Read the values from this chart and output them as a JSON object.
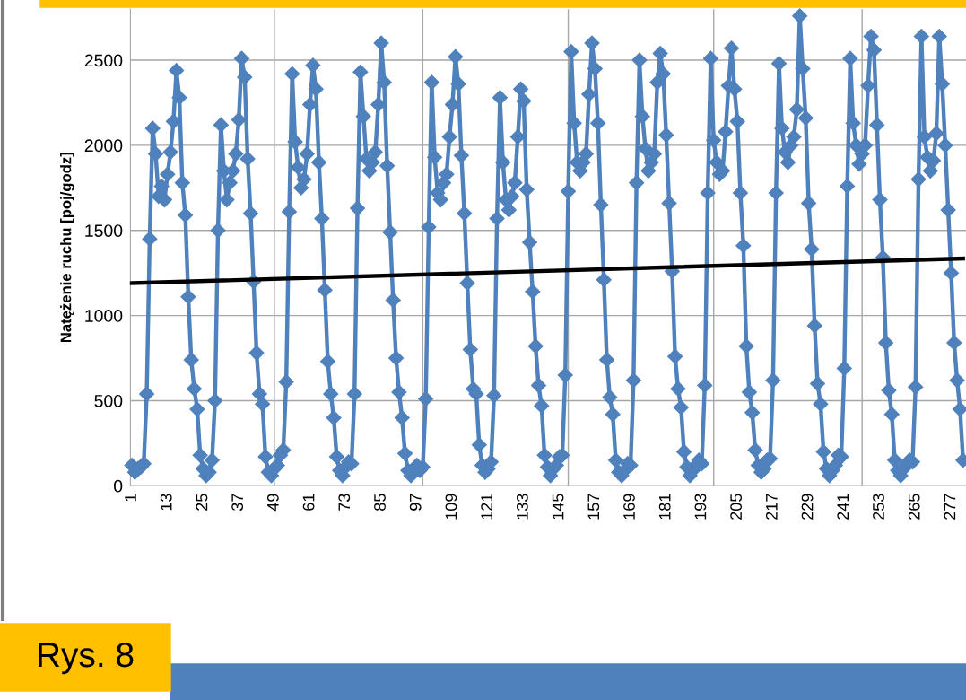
{
  "chart_data": {
    "type": "line",
    "ylabel": "Natężenie ruchu [poj/godz]",
    "annotations": [
      "Rys. 8"
    ],
    "x": [
      1,
      2,
      3,
      4,
      5,
      6,
      7,
      8,
      9,
      10,
      11,
      12,
      13,
      14,
      15,
      16,
      17,
      18,
      19,
      20,
      21,
      22,
      23,
      24,
      25,
      26,
      27,
      28,
      29,
      30,
      31,
      32,
      33,
      34,
      35,
      36,
      37,
      38,
      39,
      40,
      41,
      42,
      43,
      44,
      45,
      46,
      47,
      48,
      49,
      50,
      51,
      52,
      53,
      54,
      55,
      56,
      57,
      58,
      59,
      60,
      61,
      62,
      63,
      64,
      65,
      66,
      67,
      68,
      69,
      70,
      71,
      72,
      73,
      74,
      75,
      76,
      77,
      78,
      79,
      80,
      81,
      82,
      83,
      84,
      85,
      86,
      87,
      88,
      89,
      90,
      91,
      92,
      93,
      94,
      95,
      96,
      97,
      98,
      99,
      100,
      101,
      102,
      103,
      104,
      105,
      106,
      107,
      108,
      109,
      110,
      111,
      112,
      113,
      114,
      115,
      116,
      117,
      118,
      119,
      120,
      121,
      122,
      123,
      124,
      125,
      126,
      127,
      128,
      129,
      130,
      131,
      132,
      133,
      134,
      135,
      136,
      137,
      138,
      139,
      140,
      141,
      142,
      143,
      144,
      145,
      146,
      147,
      148,
      149,
      150,
      151,
      152,
      153,
      154,
      155,
      156,
      157,
      158,
      159,
      160,
      161,
      162,
      163,
      164,
      165,
      166,
      167,
      168,
      169,
      170,
      171,
      172,
      173,
      174,
      175,
      176,
      177,
      178,
      179,
      180,
      181,
      182,
      183,
      184,
      185,
      186,
      187,
      188,
      189,
      190,
      191,
      192,
      193,
      194,
      195,
      196,
      197,
      198,
      199,
      200,
      201,
      202,
      203,
      204,
      205,
      206,
      207,
      208,
      209,
      210,
      211,
      212,
      213,
      214,
      215,
      216,
      217,
      218,
      219,
      220,
      221,
      222,
      223,
      224,
      225,
      226,
      227,
      228,
      229,
      230,
      231,
      232,
      233,
      234,
      235,
      236,
      237,
      238,
      239,
      240,
      241,
      242,
      243,
      244,
      245,
      246,
      247,
      248,
      249,
      250,
      251,
      252,
      253,
      254,
      255,
      256,
      257,
      258,
      259,
      260,
      261,
      262,
      263,
      264,
      265,
      266,
      267,
      268,
      269,
      270,
      271,
      272,
      273,
      274,
      275,
      276,
      277,
      278,
      279,
      280,
      281
    ],
    "series": [
      {
        "color": "#4f81bd",
        "marker": "diamond",
        "line_style": "solid",
        "values": [
          120,
          80,
          100,
          110,
          130,
          540,
          1450,
          2100,
          1950,
          1700,
          1760,
          1680,
          1830,
          1960,
          2140,
          2440,
          2280,
          1780,
          1590,
          1110,
          740,
          570,
          450,
          180,
          100,
          60,
          80,
          150,
          500,
          1500,
          2120,
          1850,
          1680,
          1780,
          1850,
          1950,
          2150,
          2510,
          2400,
          1920,
          1600,
          1200,
          780,
          540,
          480,
          170,
          80,
          60,
          100,
          120,
          180,
          210,
          610,
          1610,
          2420,
          2020,
          1870,
          1750,
          1800,
          1950,
          2240,
          2470,
          2330,
          1900,
          1570,
          1150,
          730,
          540,
          400,
          170,
          90,
          60,
          110,
          140,
          130,
          540,
          1630,
          2430,
          2170,
          1920,
          1850,
          1900,
          1960,
          2240,
          2600,
          2370,
          1880,
          1490,
          1090,
          750,
          550,
          400,
          190,
          90,
          60,
          80,
          120,
          90,
          110,
          510,
          1520,
          2370,
          1930,
          1720,
          1680,
          1780,
          1830,
          2050,
          2240,
          2520,
          2360,
          1940,
          1600,
          1190,
          800,
          570,
          540,
          240,
          120,
          80,
          100,
          140,
          530,
          1570,
          2280,
          1900,
          1680,
          1620,
          1700,
          1780,
          2050,
          2330,
          2260,
          1740,
          1430,
          1140,
          820,
          590,
          470,
          180,
          110,
          60,
          100,
          120,
          170,
          180,
          650,
          1730,
          2550,
          2130,
          1900,
          1850,
          1900,
          1950,
          2300,
          2600,
          2450,
          2130,
          1650,
          1210,
          740,
          520,
          420,
          150,
          80,
          60,
          90,
          130,
          120,
          620,
          1780,
          2500,
          2170,
          1980,
          1850,
          1900,
          1950,
          2370,
          2540,
          2420,
          2060,
          1660,
          1260,
          760,
          570,
          460,
          200,
          110,
          60,
          90,
          120,
          150,
          130,
          590,
          1720,
          2510,
          2030,
          1900,
          1830,
          1850,
          2080,
          2350,
          2570,
          2330,
          2140,
          1720,
          1410,
          820,
          550,
          430,
          210,
          120,
          80,
          100,
          150,
          160,
          620,
          1720,
          2480,
          2100,
          1960,
          1900,
          2000,
          2050,
          2210,
          2760,
          2450,
          2160,
          1660,
          1390,
          940,
          600,
          480,
          200,
          100,
          60,
          90,
          120,
          180,
          170,
          690,
          1760,
          2510,
          2130,
          2000,
          1890,
          1950,
          2000,
          2350,
          2640,
          2560,
          2120,
          1680,
          1340,
          840,
          560,
          420,
          150,
          90,
          60,
          100,
          130,
          150,
          140,
          580,
          1800,
          2640,
          2050,
          1930,
          1850,
          1910,
          2070,
          2640,
          2360,
          2000,
          1620,
          1250,
          840,
          620,
          450,
          150
        ]
      },
      {
        "color": "#000000",
        "marker": "none",
        "line_style": "solid",
        "x": [
          1,
          281
        ],
        "values": [
          1190,
          1335
        ]
      }
    ],
    "xlim": [
      0.5,
      282
    ],
    "xticks": [
      1,
      13,
      25,
      37,
      49,
      61,
      73,
      85,
      97,
      109,
      121,
      133,
      145,
      157,
      169,
      181,
      193,
      205,
      217,
      229,
      241,
      253,
      265,
      277
    ],
    "ylim": [
      0,
      2800
    ],
    "yticks": [
      0,
      500,
      1000,
      1500,
      2000,
      2500
    ],
    "grid": "y",
    "legend": false,
    "ref_lines": [
      {
        "axis": "x",
        "value": 49,
        "color": "#a6a6a6"
      },
      {
        "axis": "x",
        "value": 99,
        "color": "#a6a6a6"
      },
      {
        "axis": "x",
        "value": 148,
        "color": "#a6a6a6"
      },
      {
        "axis": "x",
        "value": 197,
        "color": "#a6a6a6"
      },
      {
        "axis": "x",
        "value": 247,
        "color": "#a6a6a6"
      }
    ]
  }
}
